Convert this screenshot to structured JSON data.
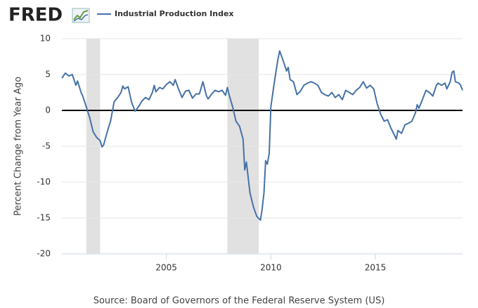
{
  "chart_data": {
    "type": "line",
    "logo": "FRED",
    "ylabel": "Percent Change from Year Ago",
    "source": "Source: Board of Governors of the Federal Reserve System (US)",
    "xlim": [
      2000,
      2019.17
    ],
    "xticks": [
      2005,
      2010,
      2015
    ],
    "ylim": [
      -20,
      10
    ],
    "yticks": [
      -20,
      -15,
      -10,
      -5,
      0,
      5,
      10
    ],
    "grid": true,
    "recessions": [
      [
        2001.17,
        2001.83
      ],
      [
        2007.92,
        2009.42
      ]
    ],
    "series": [
      {
        "name": "Industrial Production Index",
        "color": "#4572a7",
        "x": [
          2000.0,
          2000.17,
          2000.33,
          2000.5,
          2000.67,
          2000.75,
          2000.92,
          2001.0,
          2001.17,
          2001.33,
          2001.5,
          2001.67,
          2001.83,
          2001.92,
          2002.0,
          2002.17,
          2002.33,
          2002.5,
          2002.67,
          2002.83,
          2002.92,
          2003.0,
          2003.17,
          2003.33,
          2003.5,
          2003.67,
          2003.83,
          2004.0,
          2004.17,
          2004.33,
          2004.42,
          2004.5,
          2004.67,
          2004.83,
          2005.0,
          2005.17,
          2005.33,
          2005.42,
          2005.58,
          2005.75,
          2005.92,
          2006.08,
          2006.25,
          2006.42,
          2006.58,
          2006.75,
          2006.92,
          2007.0,
          2007.17,
          2007.33,
          2007.5,
          2007.67,
          2007.83,
          2007.92,
          2008.0,
          2008.17,
          2008.33,
          2008.5,
          2008.67,
          2008.75,
          2008.83,
          2008.92,
          2009.0,
          2009.17,
          2009.33,
          2009.5,
          2009.58,
          2009.67,
          2009.75,
          2009.83,
          2009.92,
          2010.0,
          2010.17,
          2010.33,
          2010.42,
          2010.58,
          2010.75,
          2010.83,
          2010.92,
          2011.08,
          2011.25,
          2011.42,
          2011.58,
          2011.75,
          2011.92,
          2012.08,
          2012.25,
          2012.42,
          2012.58,
          2012.75,
          2012.92,
          2013.08,
          2013.25,
          2013.42,
          2013.58,
          2013.75,
          2013.92,
          2014.08,
          2014.25,
          2014.42,
          2014.58,
          2014.75,
          2014.92,
          2015.08,
          2015.25,
          2015.42,
          2015.58,
          2015.75,
          2015.92,
          2016.0,
          2016.08,
          2016.25,
          2016.42,
          2016.58,
          2016.75,
          2016.92,
          2017.0,
          2017.08,
          2017.25,
          2017.42,
          2017.58,
          2017.75,
          2017.92,
          2018.0,
          2018.17,
          2018.33,
          2018.42,
          2018.58,
          2018.67,
          2018.75,
          2018.83,
          2019.0,
          2019.08,
          2019.17
        ],
        "values": [
          4.5,
          5.2,
          4.8,
          5.0,
          3.5,
          4.1,
          2.5,
          2.0,
          0.5,
          -1.0,
          -3.0,
          -3.8,
          -4.2,
          -5.1,
          -4.8,
          -3.0,
          -1.5,
          1.2,
          1.8,
          2.5,
          3.4,
          3.0,
          3.3,
          1.2,
          -0.1,
          0.5,
          1.3,
          1.8,
          1.5,
          2.5,
          3.5,
          2.6,
          3.2,
          3.0,
          3.6,
          4.0,
          3.5,
          4.3,
          3.0,
          1.8,
          2.7,
          2.8,
          1.7,
          2.3,
          2.3,
          4.0,
          2.0,
          1.6,
          2.3,
          2.8,
          2.6,
          2.8,
          2.1,
          3.2,
          2.2,
          0.5,
          -1.5,
          -2.2,
          -4.0,
          -8.3,
          -7.2,
          -9.5,
          -11.5,
          -13.5,
          -14.8,
          -15.3,
          -13.8,
          -11.5,
          -7.0,
          -7.5,
          -6.0,
          0.5,
          4.0,
          7.0,
          8.3,
          7.0,
          5.5,
          6.0,
          4.3,
          4.0,
          2.2,
          2.7,
          3.5,
          3.8,
          4.0,
          3.8,
          3.5,
          2.5,
          2.2,
          2.0,
          2.5,
          1.8,
          2.2,
          1.5,
          2.8,
          2.5,
          2.2,
          2.8,
          3.2,
          4.0,
          3.1,
          3.5,
          3.0,
          1.0,
          -0.5,
          -1.5,
          -1.3,
          -2.5,
          -3.5,
          -4.0,
          -2.8,
          -3.2,
          -2.0,
          -1.8,
          -1.5,
          -0.3,
          0.8,
          0.3,
          1.5,
          2.8,
          2.5,
          2.0,
          3.5,
          3.8,
          3.5,
          3.8,
          3.0,
          4.0,
          5.3,
          5.5,
          4.0,
          3.8,
          3.5,
          2.8
        ]
      }
    ]
  }
}
